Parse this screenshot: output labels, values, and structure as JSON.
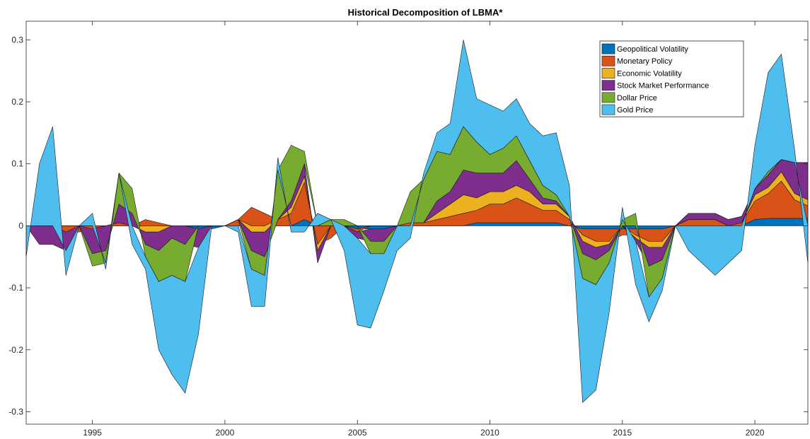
{
  "chart_data": {
    "type": "area",
    "title": "Historical Decomposition of LBMA*",
    "xlabel": "",
    "ylabel": "",
    "xlim": [
      1992.5,
      2022.0
    ],
    "ylim": [
      -0.32,
      0.33
    ],
    "x_ticks": [
      1995,
      2000,
      2005,
      2010,
      2015,
      2020
    ],
    "x_tick_labels": [
      "1995",
      "2000",
      "2005",
      "2010",
      "2015",
      "2020"
    ],
    "y_ticks": [
      -0.3,
      -0.2,
      -0.1,
      0,
      0.1,
      0.2,
      0.3
    ],
    "y_tick_labels": [
      "-0.3",
      "-0.2",
      "-0.1",
      "0",
      "0.1",
      "0.2",
      "0.3"
    ],
    "legend_position": "top-right",
    "grid": false,
    "stacked": true,
    "x": [
      1992.5,
      1993.0,
      1993.5,
      1994.0,
      1994.5,
      1995.0,
      1995.5,
      1996.0,
      1996.5,
      1997.0,
      1997.5,
      1998.0,
      1998.5,
      1999.0,
      1999.5,
      2000.0,
      2000.5,
      2001.0,
      2001.5,
      2002.0,
      2002.5,
      2003.0,
      2003.5,
      2004.0,
      2004.5,
      2005.0,
      2005.5,
      2006.0,
      2006.5,
      2007.0,
      2007.5,
      2008.0,
      2008.5,
      2009.0,
      2009.5,
      2010.0,
      2010.5,
      2011.0,
      2011.5,
      2012.0,
      2012.5,
      2013.0,
      2013.5,
      2014.0,
      2014.5,
      2015.0,
      2015.5,
      2016.0,
      2016.5,
      2017.0,
      2017.5,
      2018.0,
      2018.5,
      2019.0,
      2019.5,
      2020.0,
      2020.5,
      2021.0,
      2021.5,
      2022.0
    ],
    "series": [
      {
        "name": "Geopolitical Volatility",
        "color": "#0072BD",
        "values": [
          0,
          0,
          0,
          0,
          0,
          0,
          0,
          0,
          0,
          0,
          0,
          0,
          0,
          -0.005,
          -0.005,
          0,
          0,
          0,
          0,
          0,
          0,
          0.01,
          0,
          0,
          0,
          -0.005,
          -0.005,
          -0.005,
          0,
          0,
          0,
          0,
          0,
          0,
          0.005,
          0.005,
          0.005,
          0.005,
          0.005,
          0.005,
          0.005,
          0,
          -0.005,
          -0.005,
          -0.005,
          -0.005,
          -0.005,
          -0.005,
          -0.005,
          0,
          0,
          0,
          0,
          0,
          0,
          0.01,
          0.012,
          0.012,
          0.012,
          0.012
        ]
      },
      {
        "name": "Monetary Policy",
        "color": "#D95319",
        "values": [
          0,
          0,
          0,
          -0.01,
          -0.01,
          -0.005,
          0,
          0.005,
          0,
          0.01,
          0.005,
          0,
          0,
          0,
          0,
          0,
          0.01,
          0.03,
          0.02,
          0.01,
          0.02,
          0.06,
          -0.03,
          -0.02,
          0,
          -0.005,
          0,
          0,
          0,
          0.005,
          0.005,
          0.01,
          0.015,
          0.02,
          0.02,
          0.03,
          0.03,
          0.04,
          0.03,
          0.02,
          0.02,
          0.01,
          -0.01,
          -0.02,
          -0.02,
          -0.01,
          -0.01,
          -0.02,
          -0.02,
          0,
          0.01,
          0.01,
          0.01,
          0,
          0.005,
          0.03,
          0.04,
          0.06,
          0.03,
          0.02
        ]
      },
      {
        "name": "Economic Volatility",
        "color": "#EDB120",
        "values": [
          0,
          0,
          0,
          0,
          0,
          0,
          0,
          0,
          0,
          -0.01,
          -0.01,
          0,
          0,
          0,
          0,
          0,
          0,
          -0.01,
          -0.01,
          0,
          0.01,
          0.01,
          -0.01,
          0,
          0,
          0,
          0,
          0,
          0,
          0,
          0,
          0.01,
          0.02,
          0.03,
          0.02,
          0.02,
          0.02,
          0.02,
          0.02,
          0.01,
          0.01,
          0.005,
          -0.01,
          -0.01,
          -0.005,
          0,
          -0.005,
          -0.01,
          -0.01,
          0,
          0,
          0,
          0,
          0,
          0,
          0.01,
          0.01,
          0.015,
          0.01,
          0.01
        ]
      },
      {
        "name": "Stock Market Performance",
        "color": "#7E2F8E",
        "values": [
          0,
          -0.03,
          -0.03,
          -0.03,
          0,
          -0.04,
          -0.04,
          0.03,
          0.02,
          -0.02,
          -0.03,
          -0.02,
          -0.03,
          -0.03,
          0,
          0,
          0,
          -0.03,
          -0.04,
          0,
          0.01,
          0.02,
          -0.02,
          0,
          0,
          -0.01,
          -0.02,
          -0.02,
          0,
          0,
          0,
          0.02,
          0.02,
          0.04,
          0.04,
          0.03,
          0.03,
          0.04,
          0.02,
          0.01,
          0.005,
          0,
          -0.02,
          -0.02,
          -0.01,
          0,
          -0.005,
          -0.03,
          -0.02,
          0,
          0.01,
          0.01,
          0.01,
          0.01,
          0.01,
          0.01,
          0.02,
          0.02,
          0.05,
          0.06
        ]
      },
      {
        "name": "Dollar Price",
        "color": "#77AC30",
        "values": [
          0,
          0,
          0,
          0,
          0,
          -0.02,
          -0.02,
          0.05,
          0.04,
          -0.02,
          -0.05,
          -0.06,
          -0.06,
          0,
          0,
          0,
          0,
          -0.03,
          -0.03,
          0.08,
          0.09,
          0.02,
          0,
          0.01,
          0.01,
          0,
          -0.02,
          -0.02,
          0,
          0.05,
          0.07,
          0.08,
          0.06,
          0.07,
          0.05,
          0.03,
          0.04,
          0.04,
          0.03,
          0.02,
          0.01,
          0,
          -0.04,
          -0.04,
          -0.02,
          0.01,
          0.02,
          -0.05,
          -0.03,
          0,
          0,
          0,
          0,
          0,
          0,
          0,
          0.005,
          0,
          0,
          0
        ]
      },
      {
        "name": "Gold Price",
        "color": "#4DBEEE",
        "values": [
          -0.05,
          0.1,
          0.16,
          -0.04,
          0,
          0.02,
          -0.01,
          0,
          -0.03,
          -0.02,
          -0.11,
          -0.16,
          -0.18,
          -0.14,
          0,
          0,
          -0.01,
          -0.06,
          -0.05,
          0.02,
          -0.01,
          -0.01,
          0.02,
          0,
          -0.04,
          -0.14,
          -0.12,
          -0.06,
          -0.04,
          -0.02,
          0.01,
          0.03,
          0.05,
          0.14,
          0.07,
          0.08,
          0.06,
          0.06,
          0.06,
          0.08,
          0.1,
          0.05,
          -0.2,
          -0.17,
          -0.08,
          0.02,
          -0.07,
          -0.04,
          -0.02,
          0,
          -0.04,
          -0.06,
          -0.08,
          -0.06,
          -0.04,
          0.07,
          0.16,
          0.17,
          0.02,
          -0.06
        ]
      }
    ]
  }
}
